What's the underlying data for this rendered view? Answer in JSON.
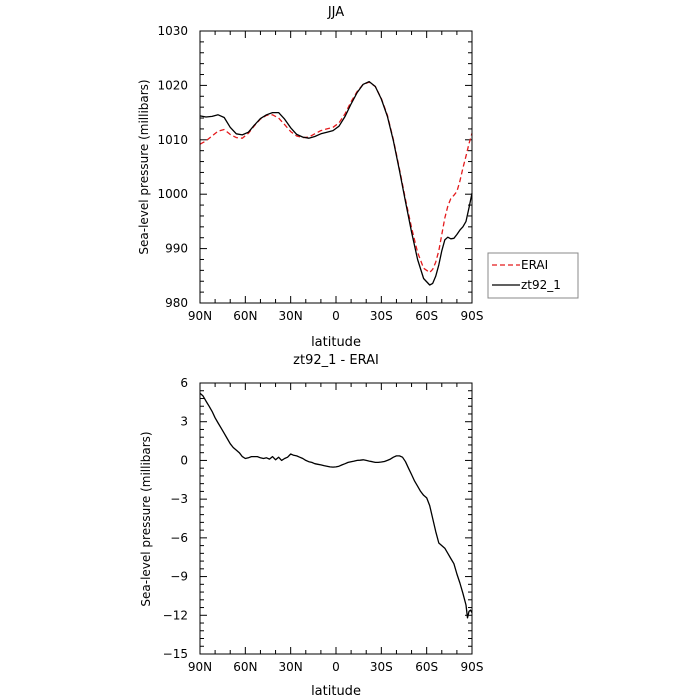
{
  "chart_data": [
    {
      "type": "line",
      "title": "JJA",
      "xlabel": "latitude",
      "ylabel": "Sea-level pressure (millibars)",
      "xlim": [
        90,
        -90
      ],
      "ylim": [
        980,
        1030
      ],
      "x_tick_values": [
        90,
        60,
        30,
        0,
        -30,
        -60,
        -90
      ],
      "x_tick_labels": [
        "90N",
        "60N",
        "30N",
        "0",
        "30S",
        "60S",
        "90S"
      ],
      "y_tick_values": [
        980,
        990,
        1000,
        1010,
        1020,
        1030
      ],
      "y_tick_labels": [
        "980",
        "990",
        "1000",
        "1010",
        "1020",
        "1030"
      ],
      "legend_position": "right",
      "series": [
        {
          "name": "ERAI",
          "color": "#e41a1c",
          "dash": "dashed",
          "x": [
            90,
            86,
            82,
            78,
            74,
            70,
            66,
            62,
            58,
            54,
            50,
            46,
            42,
            38,
            34,
            30,
            26,
            22,
            18,
            14,
            10,
            6,
            2,
            -2,
            -6,
            -10,
            -14,
            -18,
            -22,
            -26,
            -30,
            -34,
            -38,
            -42,
            -46,
            -50,
            -54,
            -58,
            -62,
            -64,
            -66,
            -68,
            -70,
            -72,
            -74,
            -76,
            -78,
            -80,
            -82,
            -84,
            -86,
            -88,
            -90
          ],
          "y": [
            1009.2,
            1009.8,
            1010.7,
            1011.6,
            1011.9,
            1011.0,
            1010.4,
            1010.3,
            1011.2,
            1012.6,
            1013.8,
            1014.5,
            1014.6,
            1014.0,
            1012.8,
            1011.5,
            1010.7,
            1010.4,
            1010.5,
            1011.1,
            1011.7,
            1012.0,
            1012.3,
            1013.1,
            1014.8,
            1017.0,
            1018.9,
            1020.2,
            1020.6,
            1019.8,
            1017.6,
            1014.5,
            1010.0,
            1004.6,
            999.0,
            993.8,
            989.3,
            986.4,
            985.6,
            986.2,
            987.5,
            989.6,
            992.6,
            995.6,
            997.8,
            999.2,
            999.8,
            1000.5,
            1002.4,
            1004.8,
            1007.0,
            1009.3,
            1011.2
          ]
        },
        {
          "name": "zt92_1",
          "color": "#000000",
          "dash": "solid",
          "x": [
            90,
            86,
            82,
            78,
            74,
            70,
            66,
            62,
            58,
            54,
            50,
            46,
            42,
            38,
            34,
            30,
            26,
            22,
            18,
            14,
            10,
            6,
            2,
            -2,
            -6,
            -10,
            -14,
            -18,
            -22,
            -26,
            -30,
            -34,
            -38,
            -42,
            -46,
            -50,
            -54,
            -58,
            -62,
            -64,
            -66,
            -68,
            -70,
            -72,
            -74,
            -76,
            -78,
            -80,
            -82,
            -84,
            -86,
            -88,
            -90
          ],
          "y": [
            1014.4,
            1014.2,
            1014.3,
            1014.6,
            1014.1,
            1012.3,
            1011.1,
            1010.9,
            1011.4,
            1012.7,
            1013.9,
            1014.6,
            1015.0,
            1015.0,
            1013.8,
            1012.2,
            1011.0,
            1010.5,
            1010.3,
            1010.6,
            1011.1,
            1011.4,
            1011.7,
            1012.5,
            1014.3,
            1016.6,
            1018.7,
            1020.2,
            1020.7,
            1019.8,
            1017.5,
            1014.3,
            1009.8,
            1004.3,
            998.6,
            993.0,
            988.0,
            984.5,
            983.3,
            983.6,
            984.9,
            987.0,
            989.6,
            991.6,
            992.1,
            991.8,
            991.9,
            992.6,
            993.4,
            994.0,
            995.0,
            997.5,
            1000.2
          ]
        }
      ],
      "legend": [
        "ERAI",
        "zt92_1"
      ]
    },
    {
      "type": "line",
      "title": "zt92_1 - ERAI",
      "xlabel": "latitude",
      "ylabel": "Sea-level pressure (millibars)",
      "xlim": [
        90,
        -90
      ],
      "ylim": [
        -15,
        6
      ],
      "x_tick_values": [
        90,
        60,
        30,
        0,
        -30,
        -60,
        -90
      ],
      "x_tick_labels": [
        "90N",
        "60N",
        "30N",
        "0",
        "30S",
        "60S",
        "90S"
      ],
      "y_tick_values": [
        6,
        3,
        0,
        -3,
        -6,
        -9,
        -12,
        -15
      ],
      "y_tick_labels": [
        "6",
        "3",
        "0",
        "−3",
        "−6",
        "−9",
        "−12",
        "−15"
      ],
      "series": [
        {
          "color": "#000000",
          "x": [
            90,
            88,
            86,
            84,
            82,
            80,
            78,
            76,
            74,
            72,
            70,
            68,
            66,
            64,
            62,
            60,
            58,
            56,
            54,
            52,
            50,
            48,
            46,
            44,
            42,
            40,
            38,
            36,
            34,
            32,
            30,
            28,
            26,
            24,
            22,
            20,
            18,
            16,
            14,
            12,
            10,
            8,
            6,
            4,
            2,
            0,
            -2,
            -4,
            -6,
            -8,
            -10,
            -12,
            -14,
            -16,
            -18,
            -20,
            -22,
            -24,
            -26,
            -28,
            -30,
            -32,
            -34,
            -36,
            -38,
            -40,
            -42,
            -44,
            -46,
            -48,
            -50,
            -52,
            -54,
            -56,
            -58,
            -60,
            -62,
            -64,
            -66,
            -68,
            -70,
            -72,
            -74,
            -76,
            -78,
            -80,
            -82,
            -84,
            -86,
            -87,
            -88,
            -89,
            -90
          ],
          "y": [
            5.2,
            5.0,
            4.6,
            4.2,
            3.8,
            3.3,
            2.9,
            2.5,
            2.1,
            1.7,
            1.3,
            1.0,
            0.8,
            0.6,
            0.3,
            0.15,
            0.2,
            0.3,
            0.3,
            0.3,
            0.2,
            0.15,
            0.2,
            0.1,
            0.3,
            0.05,
            0.25,
            0.0,
            0.15,
            0.25,
            0.5,
            0.4,
            0.35,
            0.25,
            0.15,
            0.0,
            -0.1,
            -0.15,
            -0.25,
            -0.3,
            -0.35,
            -0.4,
            -0.45,
            -0.5,
            -0.52,
            -0.5,
            -0.45,
            -0.35,
            -0.25,
            -0.15,
            -0.1,
            -0.05,
            0.0,
            0.02,
            0.05,
            0.0,
            -0.05,
            -0.1,
            -0.15,
            -0.15,
            -0.12,
            -0.08,
            0.0,
            0.1,
            0.25,
            0.35,
            0.35,
            0.25,
            -0.1,
            -0.6,
            -1.1,
            -1.6,
            -2.0,
            -2.4,
            -2.7,
            -2.9,
            -3.5,
            -4.5,
            -5.5,
            -6.4,
            -6.6,
            -6.8,
            -7.2,
            -7.6,
            -8.0,
            -8.8,
            -9.5,
            -10.3,
            -11.2,
            -12.2,
            -11.7,
            -11.6,
            -11.8
          ]
        }
      ]
    }
  ]
}
